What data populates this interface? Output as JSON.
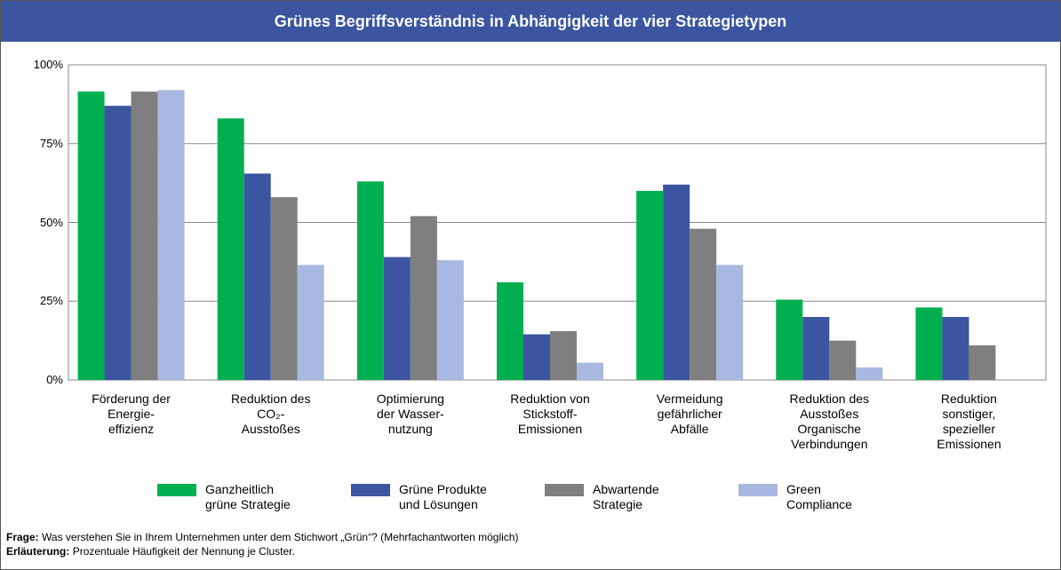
{
  "chart_data": {
    "type": "bar",
    "title": "Grünes Begriffsverständnis in Abhängigkeit der vier Strategietypen",
    "categories": [
      "Förderung der\nEnergie-\neffizienz",
      "Reduktion des\nCO₂-\nAusstoßes",
      "Optimierung\nder Wasser-\nnutzung",
      "Reduktion von\nStickstoff-\nEmissionen",
      "Vermeidung\ngefährlicher\nAbfälle",
      "Reduktion des\nAusstoßes\nOrganische\nVerbindungen",
      "Reduktion\nsonstiger,\nspezieller\nEmissionen"
    ],
    "series": [
      {
        "name": "Ganzheitlich\ngrüne Strategie",
        "color": "#00b050",
        "values": [
          91.5,
          83,
          63,
          31,
          60,
          25.5,
          23
        ]
      },
      {
        "name": "Grüne Produkte\nund Lösungen",
        "color": "#3c55a0",
        "values": [
          87,
          65.5,
          39,
          14.5,
          62,
          20,
          20
        ]
      },
      {
        "name": "Abwartende\nStrategie",
        "color": "#7f7f7f",
        "values": [
          91.5,
          58,
          52,
          15.5,
          48,
          12.5,
          11
        ]
      },
      {
        "name": "Green\nCompliance",
        "color": "#a9b8e0",
        "values": [
          92,
          36.5,
          38,
          5.5,
          36.5,
          4,
          null
        ]
      }
    ],
    "ylim": [
      0,
      100
    ],
    "yticks": [
      {
        "value": 0,
        "label": "0%"
      },
      {
        "value": 25,
        "label": "25%"
      },
      {
        "value": 50,
        "label": "50%"
      },
      {
        "value": 75,
        "label": "75%"
      },
      {
        "value": 100,
        "label": "100%"
      }
    ],
    "grid": true,
    "legend": "bottom",
    "footer": {
      "question_label": "Frage:",
      "question": "Was verstehen Sie in Ihrem Unternehmen unter dem Stichwort „Grün“? (Mehrfachantworten möglich)",
      "note_label": "Erläuterung:",
      "note": "Prozentuale Häufigkeit der Nennung je Cluster."
    }
  }
}
